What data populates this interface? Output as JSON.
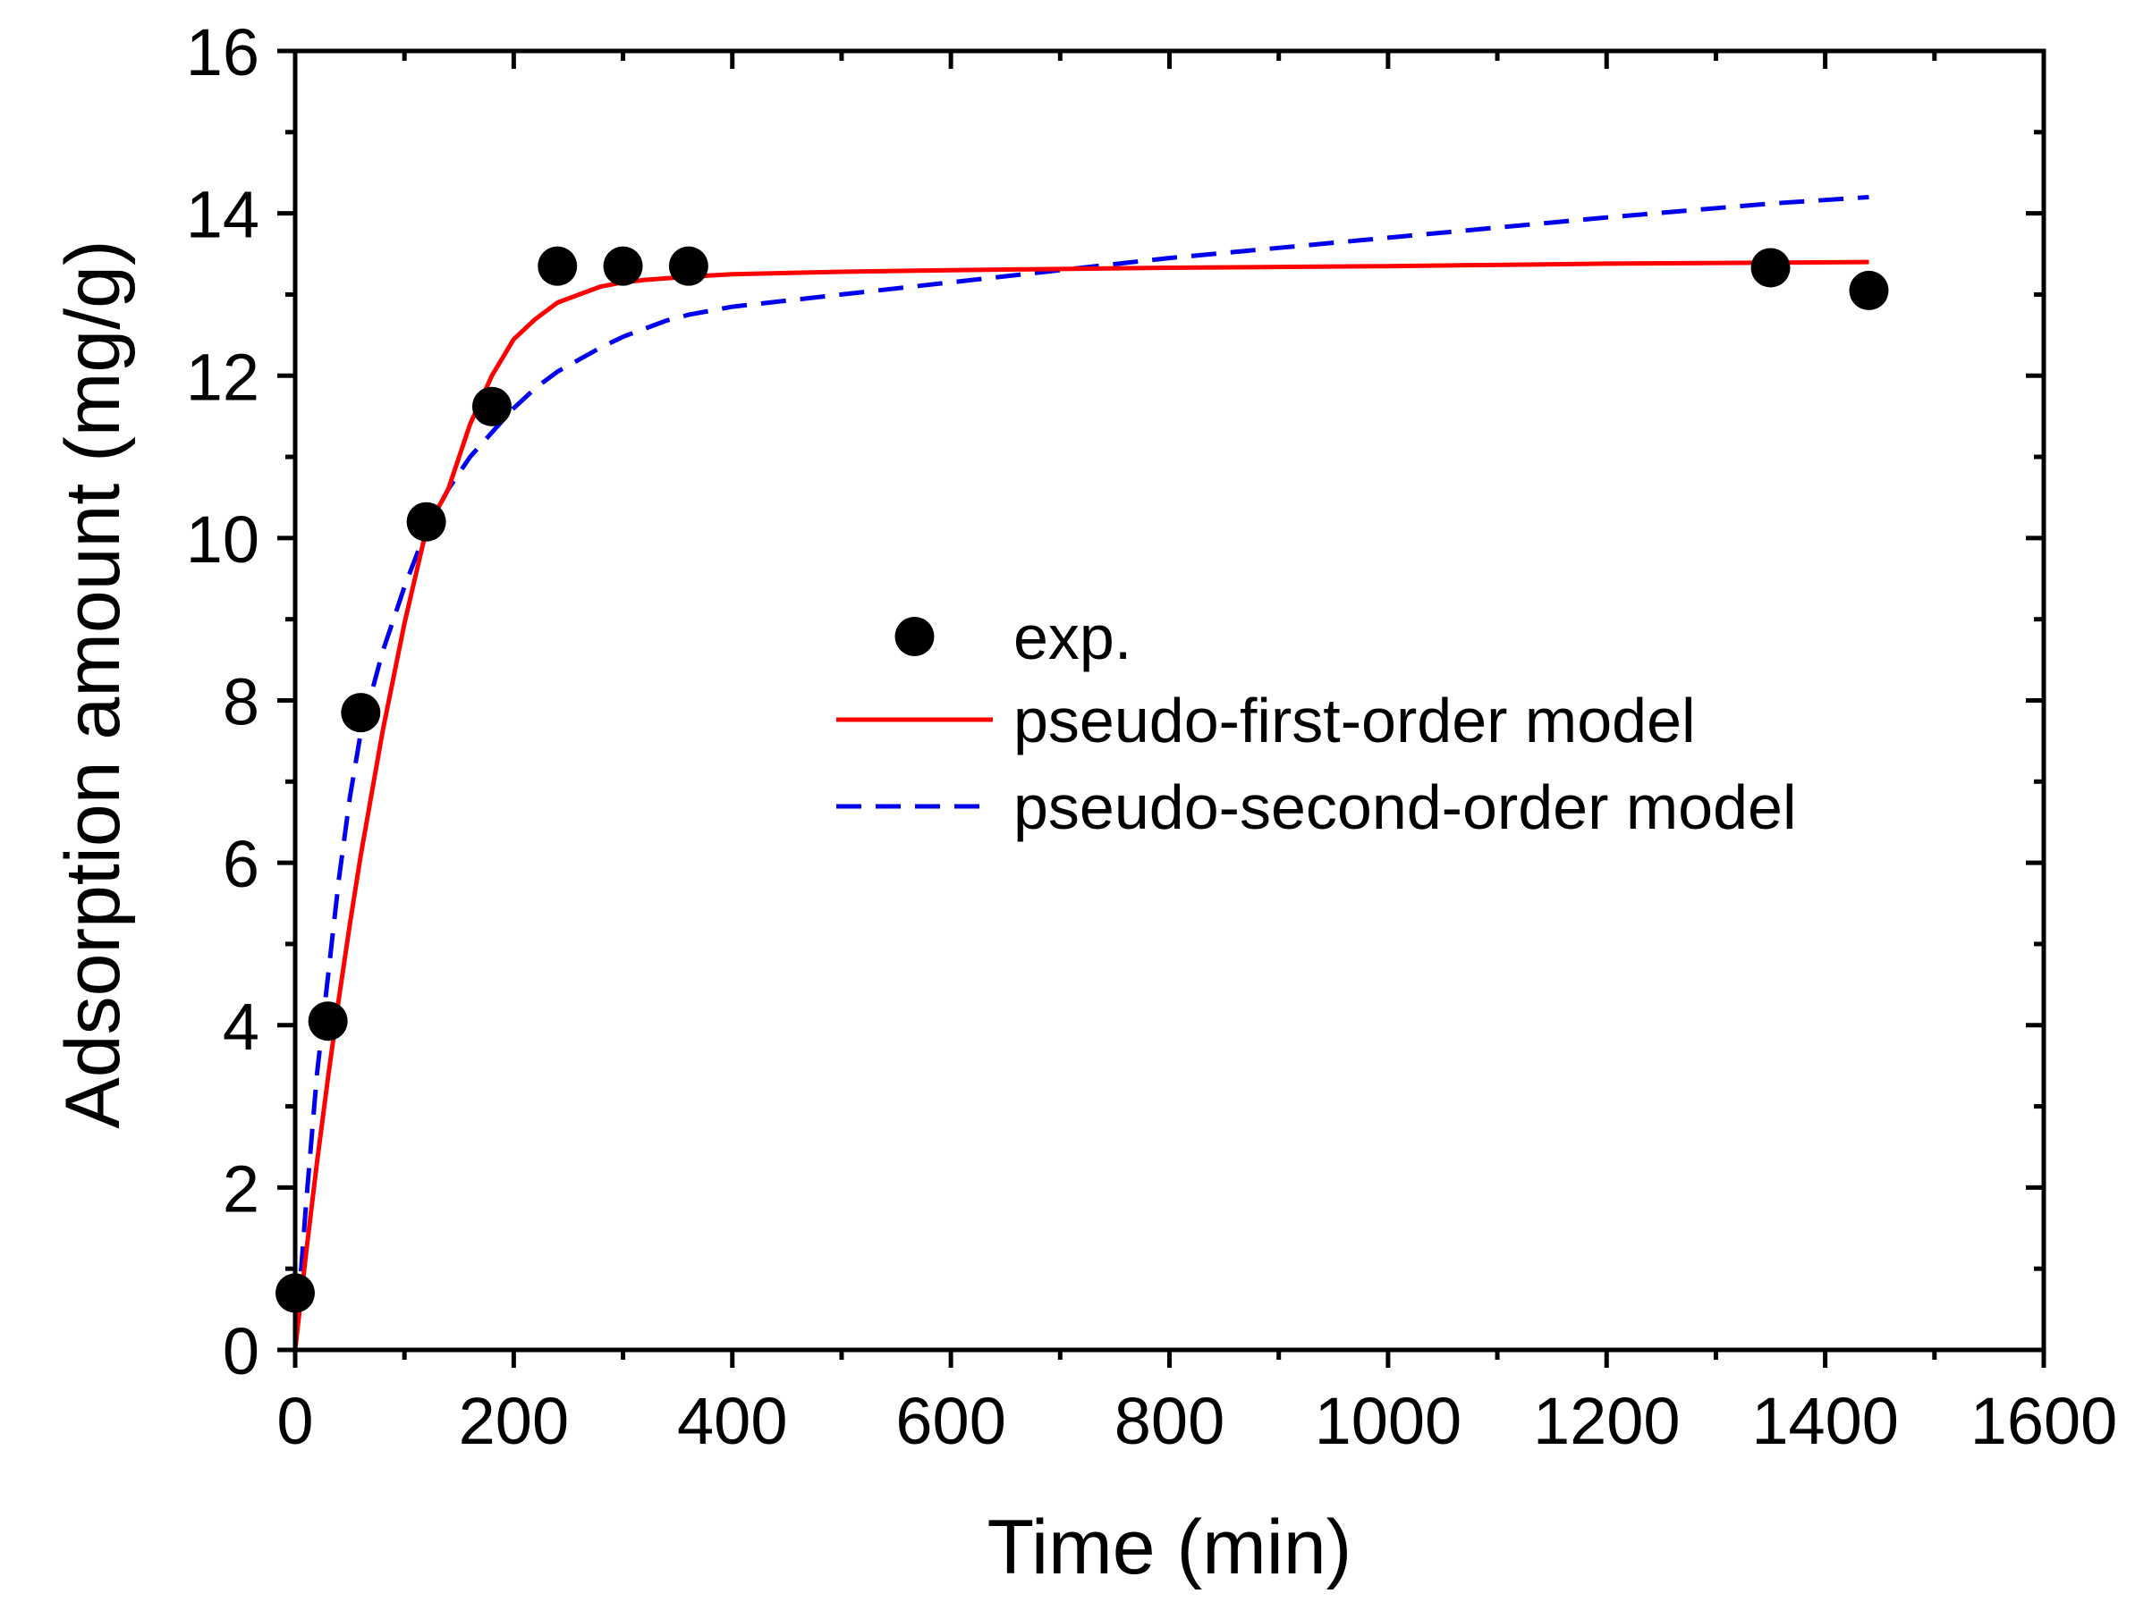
{
  "chart_data": {
    "type": "scatter",
    "title": "",
    "xlabel": "Time (min)",
    "ylabel": "Adsorption amount (mg/g)",
    "xlim": [
      0,
      1600
    ],
    "ylim": [
      0,
      16
    ],
    "xticks": [
      0,
      200,
      400,
      600,
      800,
      1000,
      1200,
      1400,
      1600
    ],
    "yticks": [
      0,
      2,
      4,
      6,
      8,
      10,
      12,
      14,
      16
    ],
    "xtick_labels": [
      "0",
      "200",
      "400",
      "600",
      "800",
      "1000",
      "1200",
      "1400",
      "1600"
    ],
    "ytick_labels": [
      "0",
      "2",
      "4",
      "6",
      "8",
      "10",
      "12",
      "14",
      "16"
    ],
    "grid": false,
    "legend_position": "center-right",
    "series": [
      {
        "name": "exp.",
        "kind": "scatter",
        "color": "#000000",
        "x": [
          0,
          30,
          60,
          120,
          180,
          240,
          300,
          360,
          1350,
          1440
        ],
        "y": [
          0.7,
          4.05,
          7.85,
          10.2,
          11.62,
          13.35,
          13.35,
          13.35,
          13.33,
          13.05
        ]
      },
      {
        "name": "pseudo-first-order model",
        "kind": "line",
        "style": "solid",
        "color": "#ff0000",
        "x": [
          0,
          10,
          20,
          30,
          40,
          50,
          60,
          80,
          100,
          120,
          140,
          160,
          180,
          200,
          220,
          240,
          260,
          280,
          300,
          320,
          340,
          360,
          400,
          500,
          600,
          800,
          1000,
          1200,
          1440
        ],
        "y": [
          0.0,
          1.19,
          2.31,
          3.35,
          4.33,
          5.24,
          6.09,
          7.62,
          8.95,
          10.1,
          10.6,
          11.4,
          12.0,
          12.45,
          12.7,
          12.9,
          13.0,
          13.1,
          13.15,
          13.18,
          13.2,
          13.22,
          13.25,
          13.28,
          13.3,
          13.33,
          13.35,
          13.38,
          13.4
        ]
      },
      {
        "name": "pseudo-second-order model",
        "kind": "line",
        "style": "dashed",
        "color": "#0000ee",
        "x": [
          0,
          10,
          20,
          30,
          40,
          50,
          60,
          80,
          100,
          120,
          140,
          160,
          180,
          200,
          220,
          240,
          260,
          280,
          300,
          320,
          340,
          360,
          400,
          500,
          600,
          700,
          800,
          1000,
          1200,
          1350,
          1440
        ],
        "y": [
          0.0,
          1.8,
          3.4,
          4.6,
          5.8,
          6.8,
          7.6,
          8.6,
          9.4,
          10.1,
          10.6,
          11.0,
          11.3,
          11.6,
          11.85,
          12.05,
          12.2,
          12.35,
          12.48,
          12.58,
          12.68,
          12.75,
          12.85,
          13.0,
          13.15,
          13.3,
          13.45,
          13.7,
          13.95,
          14.12,
          14.2
        ]
      }
    ]
  }
}
